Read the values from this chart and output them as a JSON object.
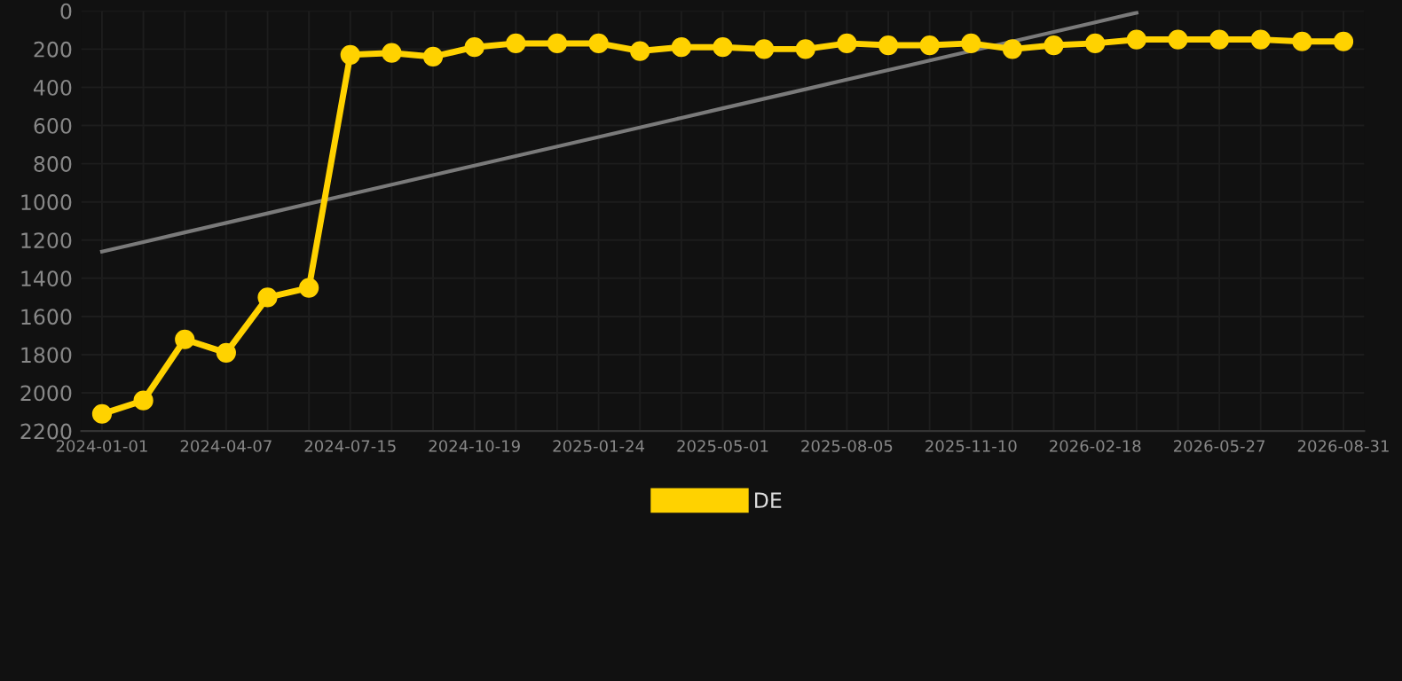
{
  "chart_data": {
    "type": "line",
    "categories": [
      "2024-01-01",
      null,
      null,
      "2024-04-07",
      null,
      null,
      "2024-07-15",
      null,
      null,
      "2024-10-19",
      null,
      null,
      "2025-01-24",
      null,
      null,
      "2025-05-01",
      null,
      null,
      "2025-08-05",
      null,
      null,
      "2025-11-10",
      null,
      null,
      "2026-02-18",
      null,
      null,
      "2026-05-27",
      null,
      null,
      "2026-08-31"
    ],
    "series": [
      {
        "name": "DE",
        "color": "#ffd200",
        "marker": "circle",
        "values": [
          2110,
          2040,
          1720,
          1790,
          1500,
          1450,
          230,
          220,
          240,
          190,
          170,
          170,
          170,
          210,
          190,
          190,
          200,
          200,
          170,
          180,
          180,
          170,
          200,
          180,
          170,
          150,
          150,
          150,
          150,
          160,
          160
        ]
      },
      {
        "type": "line",
        "color": "#7a7a7a",
        "marker": "none",
        "values": [
          1260,
          1210,
          1160,
          1110,
          1060,
          1010,
          960,
          910,
          860,
          810,
          760,
          710,
          660,
          610,
          560,
          510,
          460,
          410,
          360,
          310,
          260,
          210,
          160,
          110,
          60,
          10,
          null,
          null,
          null,
          null,
          null
        ]
      }
    ],
    "ylim": [
      2200,
      0
    ],
    "yticks": [
      0,
      200,
      400,
      600,
      800,
      1000,
      1200,
      1400,
      1600,
      1800,
      2000,
      2200
    ],
    "grid": true,
    "legend": "bottom"
  }
}
